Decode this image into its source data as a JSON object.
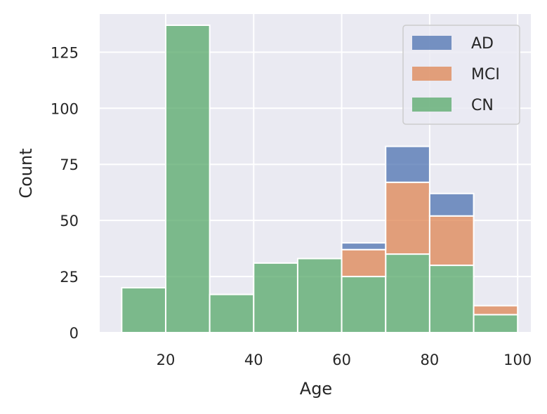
{
  "chart_data": {
    "type": "bar",
    "stacked": true,
    "xlabel": "Age",
    "ylabel": "Count",
    "bin_edges": [
      10,
      20,
      30,
      40,
      50,
      60,
      70,
      80,
      90,
      100
    ],
    "xlim": [
      5,
      103
    ],
    "ylim": [
      0,
      142
    ],
    "xticks": [
      20,
      40,
      60,
      80,
      100
    ],
    "yticks": [
      0,
      25,
      50,
      75,
      100,
      125
    ],
    "series": [
      {
        "name": "CN",
        "color": "#55a868",
        "values": [
          20,
          137,
          17,
          31,
          33,
          25,
          35,
          30,
          8
        ]
      },
      {
        "name": "MCI",
        "color": "#dd8452",
        "values": [
          0,
          0,
          0,
          0,
          0,
          12,
          32,
          22,
          4
        ]
      },
      {
        "name": "AD",
        "color": "#4c72b0",
        "values": [
          0,
          0,
          0,
          0,
          0,
          3,
          16,
          10,
          0
        ]
      }
    ],
    "legend_order": [
      "AD",
      "MCI",
      "CN"
    ],
    "legend_position": "top-right",
    "grid": true,
    "background": "#eaeaf2"
  }
}
